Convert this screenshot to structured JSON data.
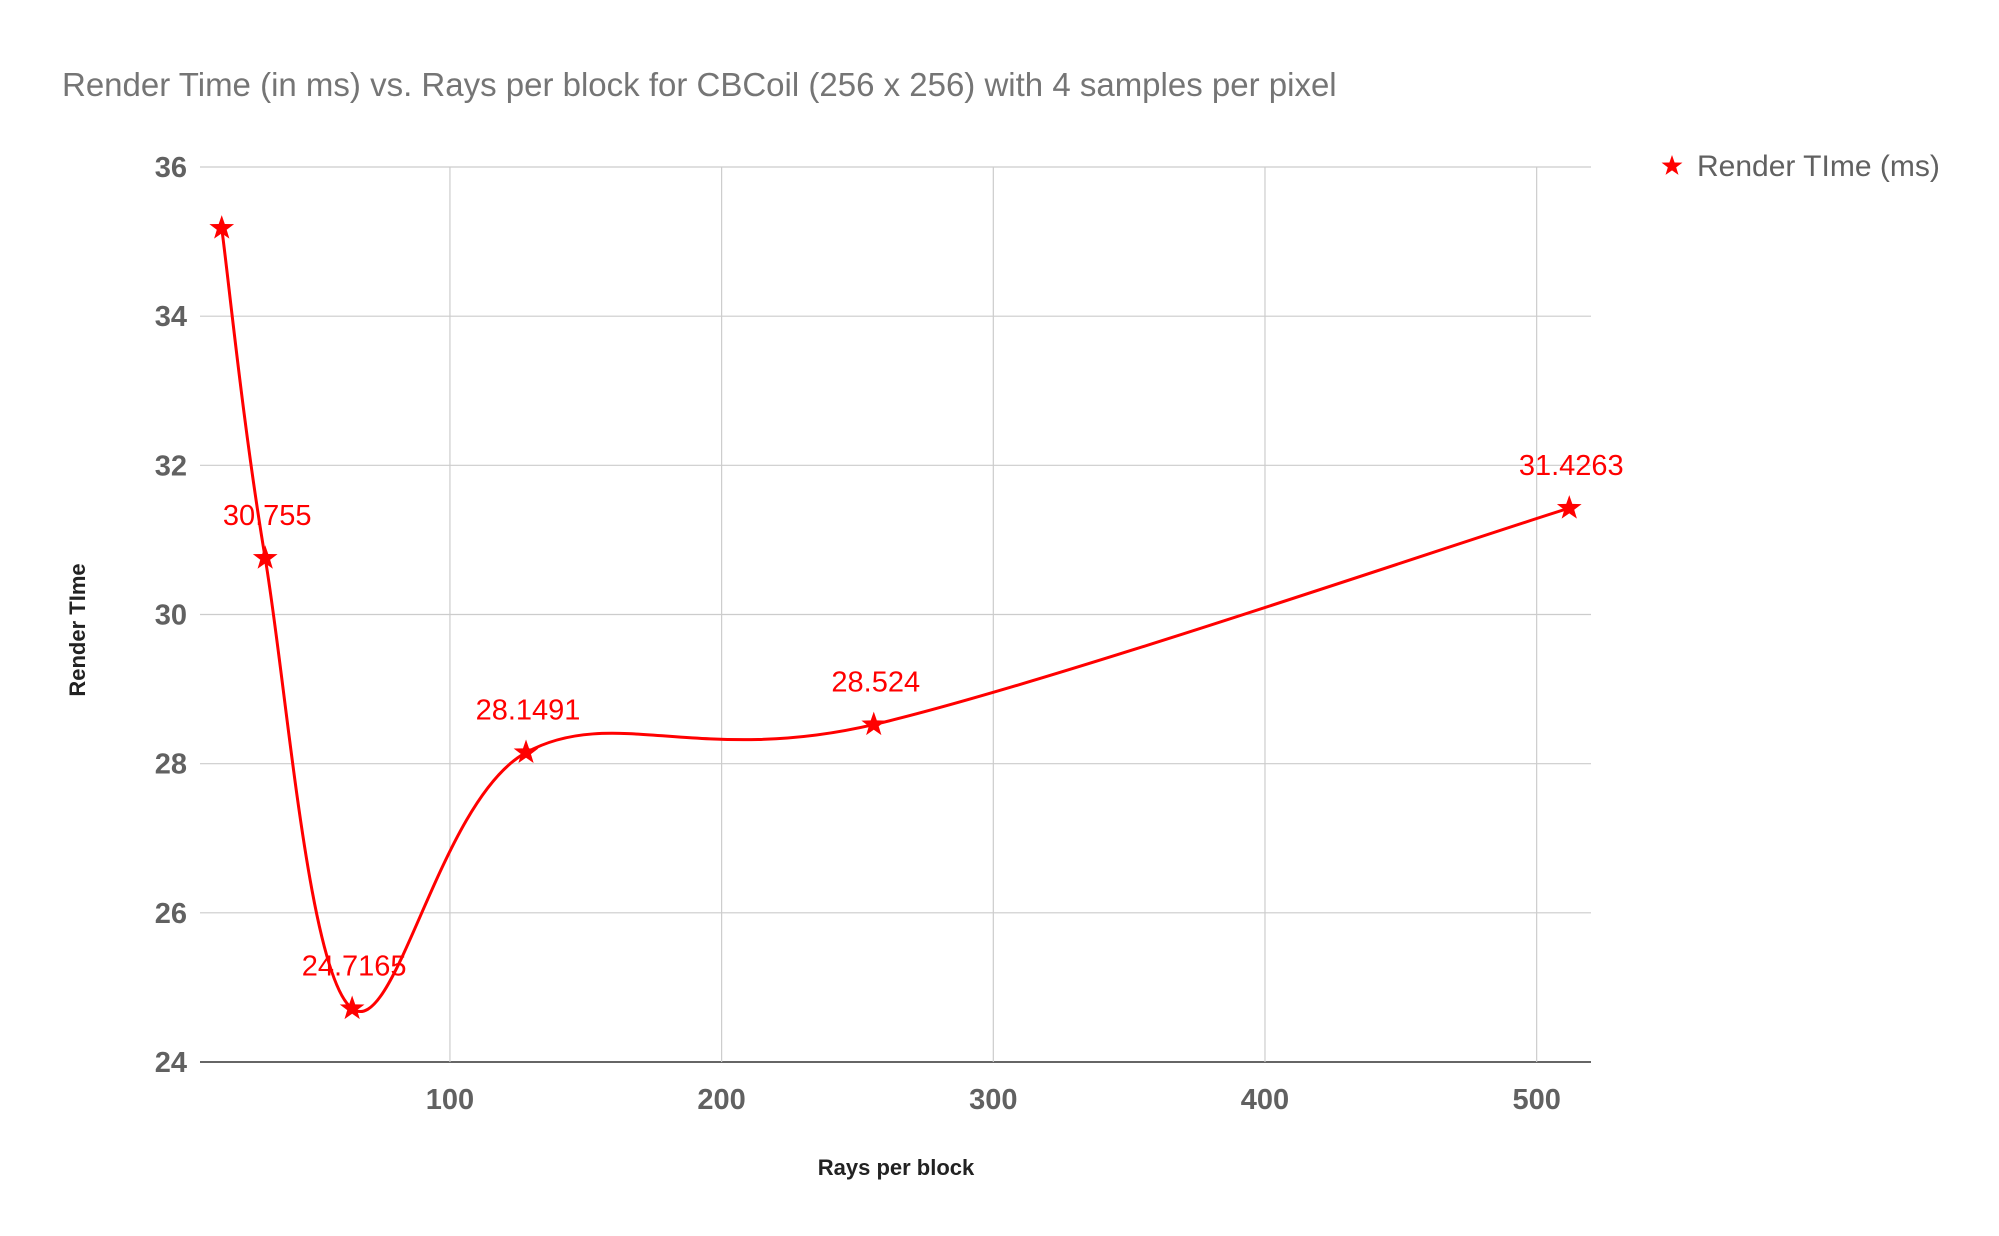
{
  "chart_data": {
    "type": "line",
    "title": "Render Time (in ms) vs. Rays per block for CBCoil (256 x 256) with 4 samples per pixel",
    "xlabel": "Rays per block",
    "ylabel": "Render TIme",
    "xlim": [
      8,
      520
    ],
    "ylim": [
      24,
      36
    ],
    "x_ticks": [
      100,
      200,
      300,
      400,
      500
    ],
    "y_ticks": [
      24,
      26,
      28,
      30,
      32,
      34,
      36
    ],
    "grid": true,
    "smooth": true,
    "legend_position": "right",
    "series": [
      {
        "name": "Render TIme (ms)",
        "color": "#ff0000",
        "marker": "star",
        "x": [
          16,
          32,
          64,
          128,
          256,
          512
        ],
        "values": [
          35.18,
          30.755,
          24.7165,
          28.1491,
          28.524,
          31.4263
        ],
        "data_labels": [
          "",
          "30.755",
          "24.7165",
          "28.1491",
          "28.524",
          "31.4263"
        ]
      }
    ]
  }
}
